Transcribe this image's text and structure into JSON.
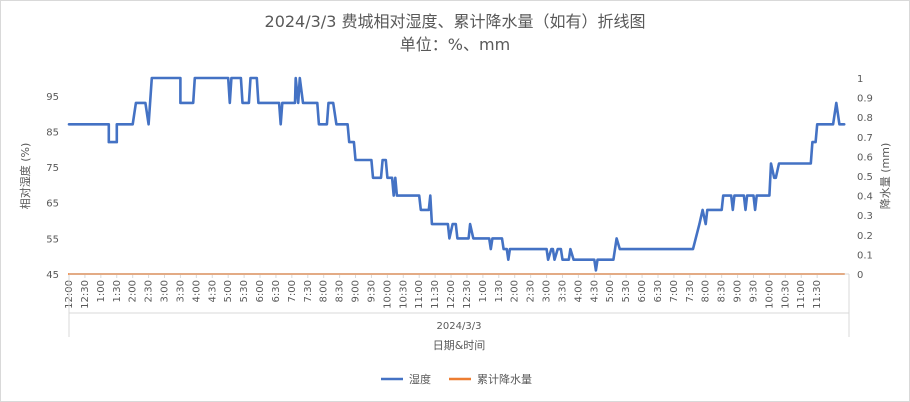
{
  "chart_data": {
    "type": "line",
    "title_line1": "2024/3/3 费城相对湿度、累计降水量（如有）折线图",
    "title_line2": "单位：%、mm",
    "date_label": "2024/3/3",
    "xlabel": "日期&时间",
    "ylabel_left": "相对湿度 (%)",
    "ylabel_right": "降水量 (mm)",
    "y_left": {
      "min": 45,
      "max": 100,
      "ticks": [
        45,
        55,
        65,
        75,
        85,
        95
      ]
    },
    "y_right": {
      "min": 0,
      "max": 1,
      "ticks": [
        "0",
        "0.1",
        "0.2",
        "0.3",
        "0.4",
        "0.5",
        "0.6",
        "0.7",
        "0.8",
        "0.9",
        "1"
      ]
    },
    "x_tick_labels": [
      "12:00",
      "12:30",
      "1:00",
      "1:30",
      "2:00",
      "2:30",
      "3:00",
      "3:30",
      "4:00",
      "4:30",
      "5:00",
      "5:30",
      "6:00",
      "6:30",
      "7:00",
      "7:30",
      "8:00",
      "8:30",
      "9:00",
      "9:30",
      "10:00",
      "10:30",
      "11:00",
      "11:30",
      "12:00",
      "12:30",
      "1:00",
      "1:30",
      "2:00",
      "2:30",
      "3:00",
      "3:30",
      "4:00",
      "4:30",
      "5:00",
      "5:30",
      "6:00",
      "6:30",
      "7:00",
      "7:30",
      "8:00",
      "8:30",
      "9:00",
      "9:30",
      "10:00",
      "10:30",
      "11:00",
      "11:30"
    ],
    "x_range_hours": [
      0,
      24.5
    ],
    "legend_position": "bottom",
    "colors": {
      "humidity": "#4472C4",
      "precip": "#ED7D31"
    },
    "series": [
      {
        "name": "湿度",
        "axis": "left",
        "points": [
          [
            0,
            87
          ],
          [
            1.25,
            87
          ],
          [
            1.25,
            82
          ],
          [
            1.5,
            82
          ],
          [
            1.5,
            87
          ],
          [
            2,
            87
          ],
          [
            2.1,
            93
          ],
          [
            2.4,
            93
          ],
          [
            2.5,
            87
          ],
          [
            2.6,
            100
          ],
          [
            3.5,
            100
          ],
          [
            3.5,
            93
          ],
          [
            3.9,
            93
          ],
          [
            3.95,
            100
          ],
          [
            5,
            100
          ],
          [
            5.05,
            93
          ],
          [
            5.1,
            100
          ],
          [
            5.4,
            100
          ],
          [
            5.45,
            93
          ],
          [
            5.65,
            93
          ],
          [
            5.7,
            100
          ],
          [
            5.9,
            100
          ],
          [
            5.95,
            93
          ],
          [
            6.6,
            93
          ],
          [
            6.65,
            87
          ],
          [
            6.7,
            93
          ],
          [
            7.1,
            93
          ],
          [
            7.12,
            100
          ],
          [
            7.2,
            93
          ],
          [
            7.25,
            100
          ],
          [
            7.35,
            93
          ],
          [
            7.8,
            93
          ],
          [
            7.85,
            87
          ],
          [
            8.1,
            87
          ],
          [
            8.15,
            93
          ],
          [
            8.3,
            93
          ],
          [
            8.4,
            87
          ],
          [
            8.75,
            87
          ],
          [
            8.8,
            82
          ],
          [
            8.95,
            82
          ],
          [
            9.0,
            77
          ],
          [
            9.5,
            77
          ],
          [
            9.55,
            72
          ],
          [
            9.8,
            72
          ],
          [
            9.85,
            77
          ],
          [
            9.95,
            77
          ],
          [
            10.0,
            72
          ],
          [
            10.15,
            72
          ],
          [
            10.2,
            67
          ],
          [
            10.25,
            72
          ],
          [
            10.3,
            67
          ],
          [
            11.0,
            67
          ],
          [
            11.05,
            63
          ],
          [
            11.3,
            63
          ],
          [
            11.35,
            67
          ],
          [
            11.4,
            59
          ],
          [
            11.9,
            59
          ],
          [
            11.95,
            55
          ],
          [
            12.05,
            59
          ],
          [
            12.15,
            59
          ],
          [
            12.2,
            55
          ],
          [
            12.55,
            55
          ],
          [
            12.6,
            59
          ],
          [
            12.7,
            55
          ],
          [
            13.2,
            55
          ],
          [
            13.25,
            52
          ],
          [
            13.3,
            55
          ],
          [
            13.6,
            55
          ],
          [
            13.65,
            52
          ],
          [
            13.75,
            52
          ],
          [
            13.8,
            49
          ],
          [
            13.85,
            52
          ],
          [
            15.0,
            52
          ],
          [
            15.05,
            49
          ],
          [
            15.15,
            52
          ],
          [
            15.2,
            52
          ],
          [
            15.25,
            49
          ],
          [
            15.35,
            52
          ],
          [
            15.45,
            52
          ],
          [
            15.5,
            49
          ],
          [
            15.7,
            49
          ],
          [
            15.75,
            52
          ],
          [
            15.85,
            49
          ],
          [
            16.5,
            49
          ],
          [
            16.55,
            46
          ],
          [
            16.6,
            49
          ],
          [
            17.1,
            49
          ],
          [
            17.2,
            55
          ],
          [
            17.3,
            52
          ],
          [
            19.6,
            52
          ],
          [
            19.8,
            59
          ],
          [
            19.9,
            63
          ],
          [
            20.0,
            59
          ],
          [
            20.05,
            63
          ],
          [
            20.5,
            63
          ],
          [
            20.55,
            67
          ],
          [
            20.8,
            67
          ],
          [
            20.85,
            63
          ],
          [
            20.9,
            67
          ],
          [
            21.2,
            67
          ],
          [
            21.25,
            63
          ],
          [
            21.3,
            67
          ],
          [
            21.5,
            67
          ],
          [
            21.55,
            63
          ],
          [
            21.6,
            67
          ],
          [
            22.0,
            67
          ],
          [
            22.05,
            76
          ],
          [
            22.15,
            72
          ],
          [
            22.2,
            72
          ],
          [
            22.3,
            76
          ],
          [
            23.3,
            76
          ],
          [
            23.35,
            82
          ],
          [
            23.45,
            82
          ],
          [
            23.5,
            87
          ],
          [
            24.0,
            87
          ],
          [
            24.1,
            93
          ],
          [
            24.2,
            87
          ],
          [
            24.35,
            87
          ]
        ]
      },
      {
        "name": "累计降水量",
        "axis": "right",
        "points": [
          [
            0,
            0
          ],
          [
            24.35,
            0
          ]
        ]
      }
    ]
  }
}
